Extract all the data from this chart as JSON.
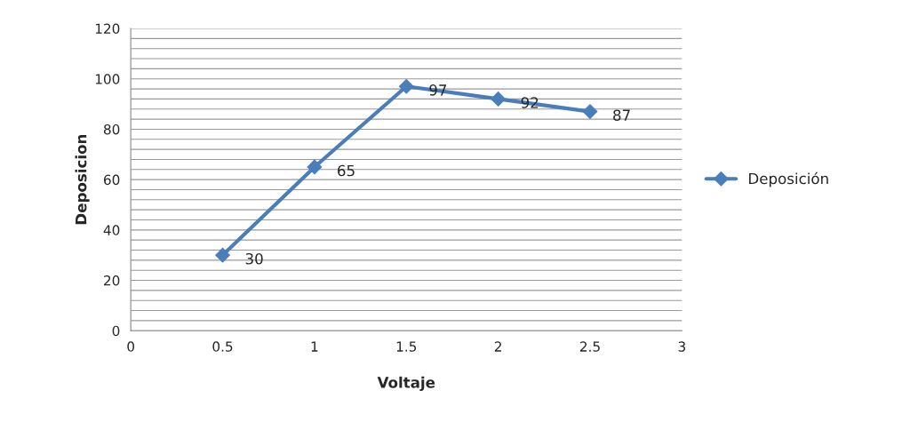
{
  "chart_data": {
    "type": "line",
    "xlabel": "Voltaje",
    "ylabel": "Deposicion",
    "x": [
      0.5,
      1,
      1.5,
      2,
      2.5
    ],
    "series": [
      {
        "name": "Deposición",
        "color": "#4a7ebb",
        "values": [
          30,
          65,
          97,
          92,
          87
        ]
      }
    ],
    "xlim": [
      0,
      3
    ],
    "xticks": [
      0,
      0.5,
      1,
      1.5,
      2,
      2.5,
      3
    ],
    "ylim": [
      0,
      120
    ],
    "yticks": [
      0,
      {
        "value": 4,
        "label": null
      },
      {
        "value": 8,
        "label": null
      },
      {
        "value": 12,
        "label": null
      },
      {
        "value": 16,
        "label": null
      },
      20,
      {
        "value": 24,
        "label": null
      },
      {
        "value": 28,
        "label": null
      },
      {
        "value": 32,
        "label": null
      },
      {
        "value": 36,
        "label": null
      },
      40,
      {
        "value": 44,
        "label": null
      },
      {
        "value": 48,
        "label": null
      },
      {
        "value": 52,
        "label": null
      },
      {
        "value": 56,
        "label": null
      },
      60,
      {
        "value": 64,
        "label": null
      },
      {
        "value": 68,
        "label": null
      },
      {
        "value": 72,
        "label": null
      },
      {
        "value": 76,
        "label": null
      },
      80,
      {
        "value": 84,
        "label": null
      },
      {
        "value": 88,
        "label": null
      },
      {
        "value": 92,
        "label": null
      },
      {
        "value": 96,
        "label": null
      },
      100,
      {
        "value": 104,
        "label": null
      },
      {
        "value": 108,
        "label": null
      },
      {
        "value": 112,
        "label": null
      },
      {
        "value": 116,
        "label": null
      },
      120
    ],
    "grid": "y",
    "legend": "right",
    "marker": "diamond",
    "line_style": "solid",
    "data_labels": true
  }
}
